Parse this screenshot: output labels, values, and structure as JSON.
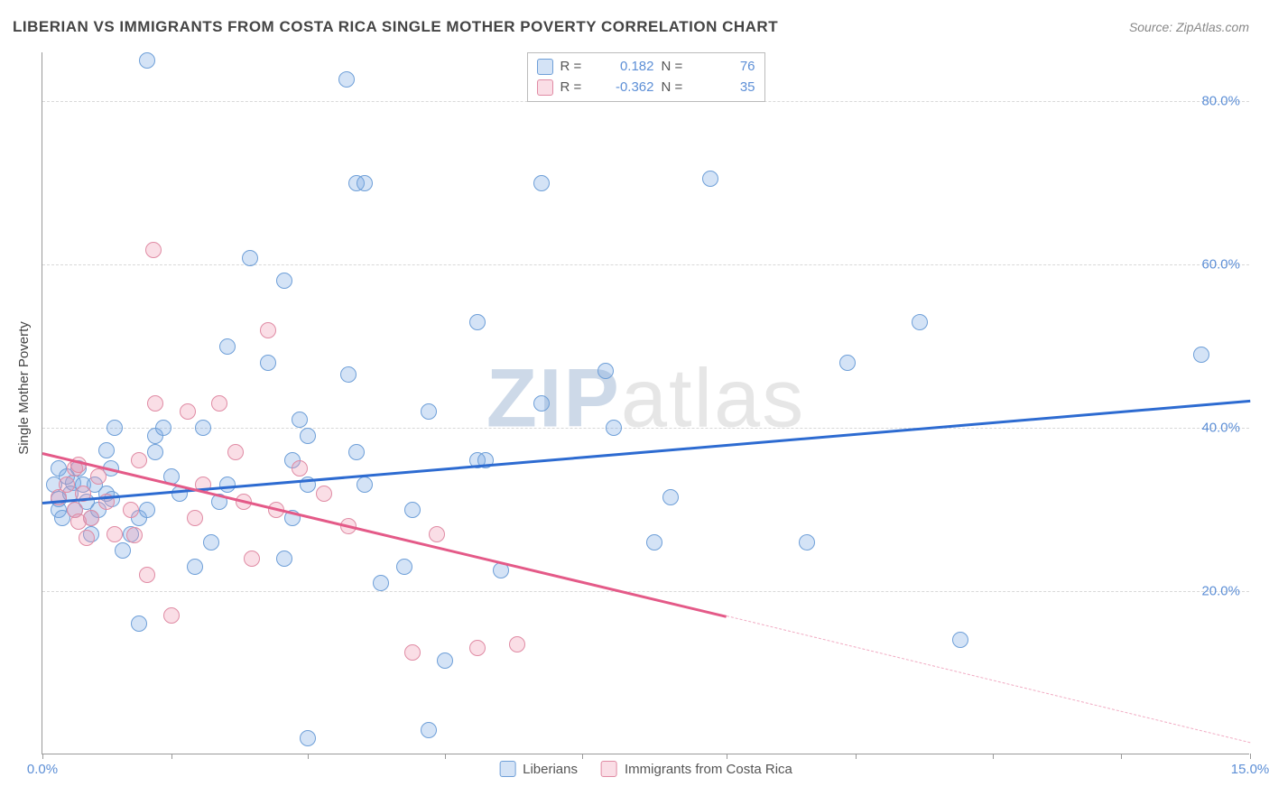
{
  "title": "LIBERIAN VS IMMIGRANTS FROM COSTA RICA SINGLE MOTHER POVERTY CORRELATION CHART",
  "source_label": "Source: ZipAtlas.com",
  "ylabel": "Single Mother Poverty",
  "watermark_bold": "ZIP",
  "watermark_rest": "atlas",
  "chart": {
    "type": "scatter",
    "xlim": [
      0,
      15
    ],
    "ylim": [
      0,
      86
    ],
    "xtick_positions": [
      0,
      1.6,
      3.3,
      5.0,
      6.7,
      8.5,
      10.1,
      11.8,
      13.4,
      15.0
    ],
    "xtick_labels": {
      "0": "0.0%",
      "15": "15.0%"
    },
    "ytick_positions": [
      20,
      40,
      60,
      80
    ],
    "ytick_labels": [
      "20.0%",
      "40.0%",
      "60.0%",
      "80.0%"
    ],
    "grid_color": "#d8d8d8",
    "background_color": "#ffffff",
    "axis_color": "#999999",
    "tick_label_color": "#5d8fd6",
    "point_radius": 9,
    "series": [
      {
        "name": "Liberians",
        "fill": "rgba(122,168,226,0.32)",
        "stroke": "#6e9fd8",
        "trend_color": "#2d6bd1",
        "trend": {
          "x1": 0,
          "y1": 31,
          "x2": 15,
          "y2": 43.5
        },
        "R": "0.182",
        "N": "76",
        "points": [
          [
            0.15,
            33
          ],
          [
            0.2,
            30
          ],
          [
            0.2,
            35
          ],
          [
            0.38,
            33.3
          ],
          [
            0.2,
            31.3
          ],
          [
            0.25,
            29
          ],
          [
            0.3,
            34
          ],
          [
            0.35,
            32
          ],
          [
            0.4,
            30
          ],
          [
            0.45,
            35
          ],
          [
            0.5,
            33
          ],
          [
            0.55,
            31
          ],
          [
            0.6,
            29
          ],
          [
            0.65,
            33
          ],
          [
            0.7,
            30
          ],
          [
            0.8,
            32
          ],
          [
            0.85,
            35
          ],
          [
            0.9,
            40
          ],
          [
            0.86,
            31.3
          ],
          [
            0.8,
            37.3
          ],
          [
            0.6,
            27
          ],
          [
            1.0,
            25
          ],
          [
            1.1,
            27
          ],
          [
            1.2,
            29
          ],
          [
            1.3,
            30
          ],
          [
            1.4,
            39
          ],
          [
            1.5,
            40
          ],
          [
            1.6,
            34
          ],
          [
            1.7,
            32
          ],
          [
            1.3,
            85
          ],
          [
            1.9,
            23
          ],
          [
            1.2,
            16
          ],
          [
            1.4,
            37
          ],
          [
            2.0,
            40
          ],
          [
            2.1,
            26
          ],
          [
            2.2,
            31
          ],
          [
            2.3,
            33
          ],
          [
            2.3,
            50
          ],
          [
            2.8,
            48
          ],
          [
            3.0,
            24
          ],
          [
            3.0,
            58
          ],
          [
            3.1,
            29
          ],
          [
            3.2,
            41
          ],
          [
            3.3,
            39
          ],
          [
            3.3,
            33
          ],
          [
            3.1,
            36
          ],
          [
            2.58,
            60.8
          ],
          [
            3.78,
            82.7
          ],
          [
            3.9,
            70
          ],
          [
            3.8,
            46.5
          ],
          [
            3.9,
            37
          ],
          [
            4.0,
            33
          ],
          [
            4.2,
            21
          ],
          [
            4.0,
            70
          ],
          [
            4.5,
            23
          ],
          [
            4.6,
            30
          ],
          [
            4.8,
            42
          ],
          [
            4.8,
            3
          ],
          [
            3.3,
            2
          ],
          [
            5.0,
            11.5
          ],
          [
            5.4,
            36
          ],
          [
            5.4,
            53
          ],
          [
            5.5,
            36
          ],
          [
            5.7,
            22.5
          ],
          [
            6.2,
            43
          ],
          [
            6.2,
            70
          ],
          [
            7.0,
            47
          ],
          [
            7.1,
            40
          ],
          [
            7.8,
            31.5
          ],
          [
            7.6,
            26
          ],
          [
            8.3,
            70.5
          ],
          [
            9.5,
            26
          ],
          [
            10.0,
            48
          ],
          [
            10.9,
            53
          ],
          [
            11.4,
            14
          ],
          [
            14.4,
            49
          ]
        ]
      },
      {
        "name": "Immigrants from Costa Rica",
        "fill": "rgba(237,145,171,0.30)",
        "stroke": "#e08ba4",
        "trend_color": "#e45a88",
        "trend": {
          "x1": 0,
          "y1": 37,
          "x2": 8.5,
          "y2": 17
        },
        "trend_dash": {
          "x1": 8.5,
          "y1": 17,
          "x2": 15,
          "y2": 1.5
        },
        "R": "-0.362",
        "N": "35",
        "points": [
          [
            0.2,
            31.5
          ],
          [
            0.3,
            33
          ],
          [
            0.4,
            30
          ],
          [
            0.4,
            35
          ],
          [
            0.45,
            35.5
          ],
          [
            0.45,
            28.5
          ],
          [
            0.55,
            26.5
          ],
          [
            0.5,
            32
          ],
          [
            0.6,
            29
          ],
          [
            0.7,
            34
          ],
          [
            0.8,
            31
          ],
          [
            0.9,
            27
          ],
          [
            1.14,
            26.9
          ],
          [
            1.1,
            30
          ],
          [
            1.2,
            36
          ],
          [
            1.3,
            22
          ],
          [
            1.4,
            43
          ],
          [
            1.38,
            61.8
          ],
          [
            1.6,
            17
          ],
          [
            1.8,
            42
          ],
          [
            1.9,
            29
          ],
          [
            2.0,
            33
          ],
          [
            2.2,
            43
          ],
          [
            2.4,
            37
          ],
          [
            2.5,
            31
          ],
          [
            2.6,
            24
          ],
          [
            2.8,
            52
          ],
          [
            2.9,
            30
          ],
          [
            3.2,
            35
          ],
          [
            3.5,
            32
          ],
          [
            3.8,
            28
          ],
          [
            4.6,
            12.5
          ],
          [
            4.9,
            27
          ],
          [
            5.4,
            13
          ],
          [
            5.9,
            13.5
          ]
        ]
      }
    ]
  },
  "legend_top": {
    "r_label": "R =",
    "n_label": "N ="
  },
  "legend_bottom_items": [
    "Liberians",
    "Immigrants from Costa Rica"
  ]
}
